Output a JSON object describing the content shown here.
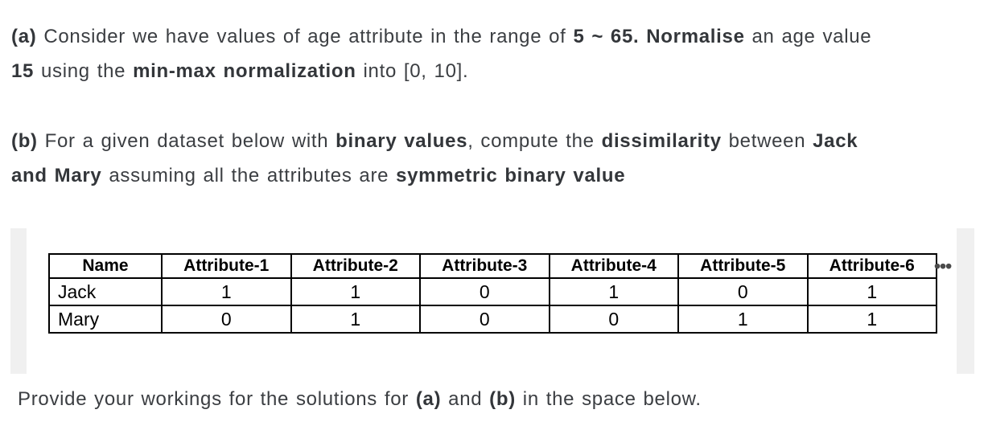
{
  "page": {
    "background": "#ffffff",
    "text_color": "#3b3e42",
    "table_border_color": "#000000",
    "gutter_color": "#f0f0f0",
    "dots_color": "#4b4b4b"
  },
  "question_a": {
    "lines": [
      [
        {
          "t": "(a) ",
          "b": true
        },
        {
          "t": "Consider we have values of age attribute in the range of ",
          "b": false
        },
        {
          "t": "5 ~ 65. Normalise",
          "b": true
        },
        {
          "t": " an age value",
          "b": false
        }
      ],
      [
        {
          "t": "15",
          "b": true
        },
        {
          "t": " using the ",
          "b": false
        },
        {
          "t": "min-max normalization",
          "b": true
        },
        {
          "t": " into [0, 10].",
          "b": false
        }
      ]
    ]
  },
  "question_b": {
    "lines": [
      [
        {
          "t": "(b) ",
          "b": true
        },
        {
          "t": "For a given dataset below with ",
          "b": false
        },
        {
          "t": "binary values",
          "b": true
        },
        {
          "t": ", compute the ",
          "b": false
        },
        {
          "t": "dissimilarity",
          "b": true
        },
        {
          "t": " between ",
          "b": false
        },
        {
          "t": "Jack",
          "b": true
        }
      ],
      [
        {
          "t": "and Mary",
          "b": true
        },
        {
          "t": " assuming all the attributes are ",
          "b": false
        },
        {
          "t": "symmetric binary value",
          "b": true
        }
      ]
    ]
  },
  "table": {
    "headers": [
      "Name",
      "Attribute-1",
      "Attribute-2",
      "Attribute-3",
      "Attribute-4",
      "Attribute-5",
      "Attribute-6"
    ],
    "rows": [
      {
        "name": "Jack",
        "values": [
          "1",
          "1",
          "0",
          "1",
          "0",
          "1"
        ]
      },
      {
        "name": "Mary",
        "values": [
          "0",
          "1",
          "0",
          "0",
          "1",
          "1"
        ]
      }
    ],
    "ellipsis": "•••"
  },
  "footer": {
    "lines": [
      [
        {
          "t": "Provide your workings for the solutions for ",
          "b": false
        },
        {
          "t": "(a)",
          "b": true
        },
        {
          "t": " and ",
          "b": false
        },
        {
          "t": "(b)",
          "b": true
        },
        {
          "t": " in the space below.",
          "b": false
        }
      ]
    ]
  }
}
